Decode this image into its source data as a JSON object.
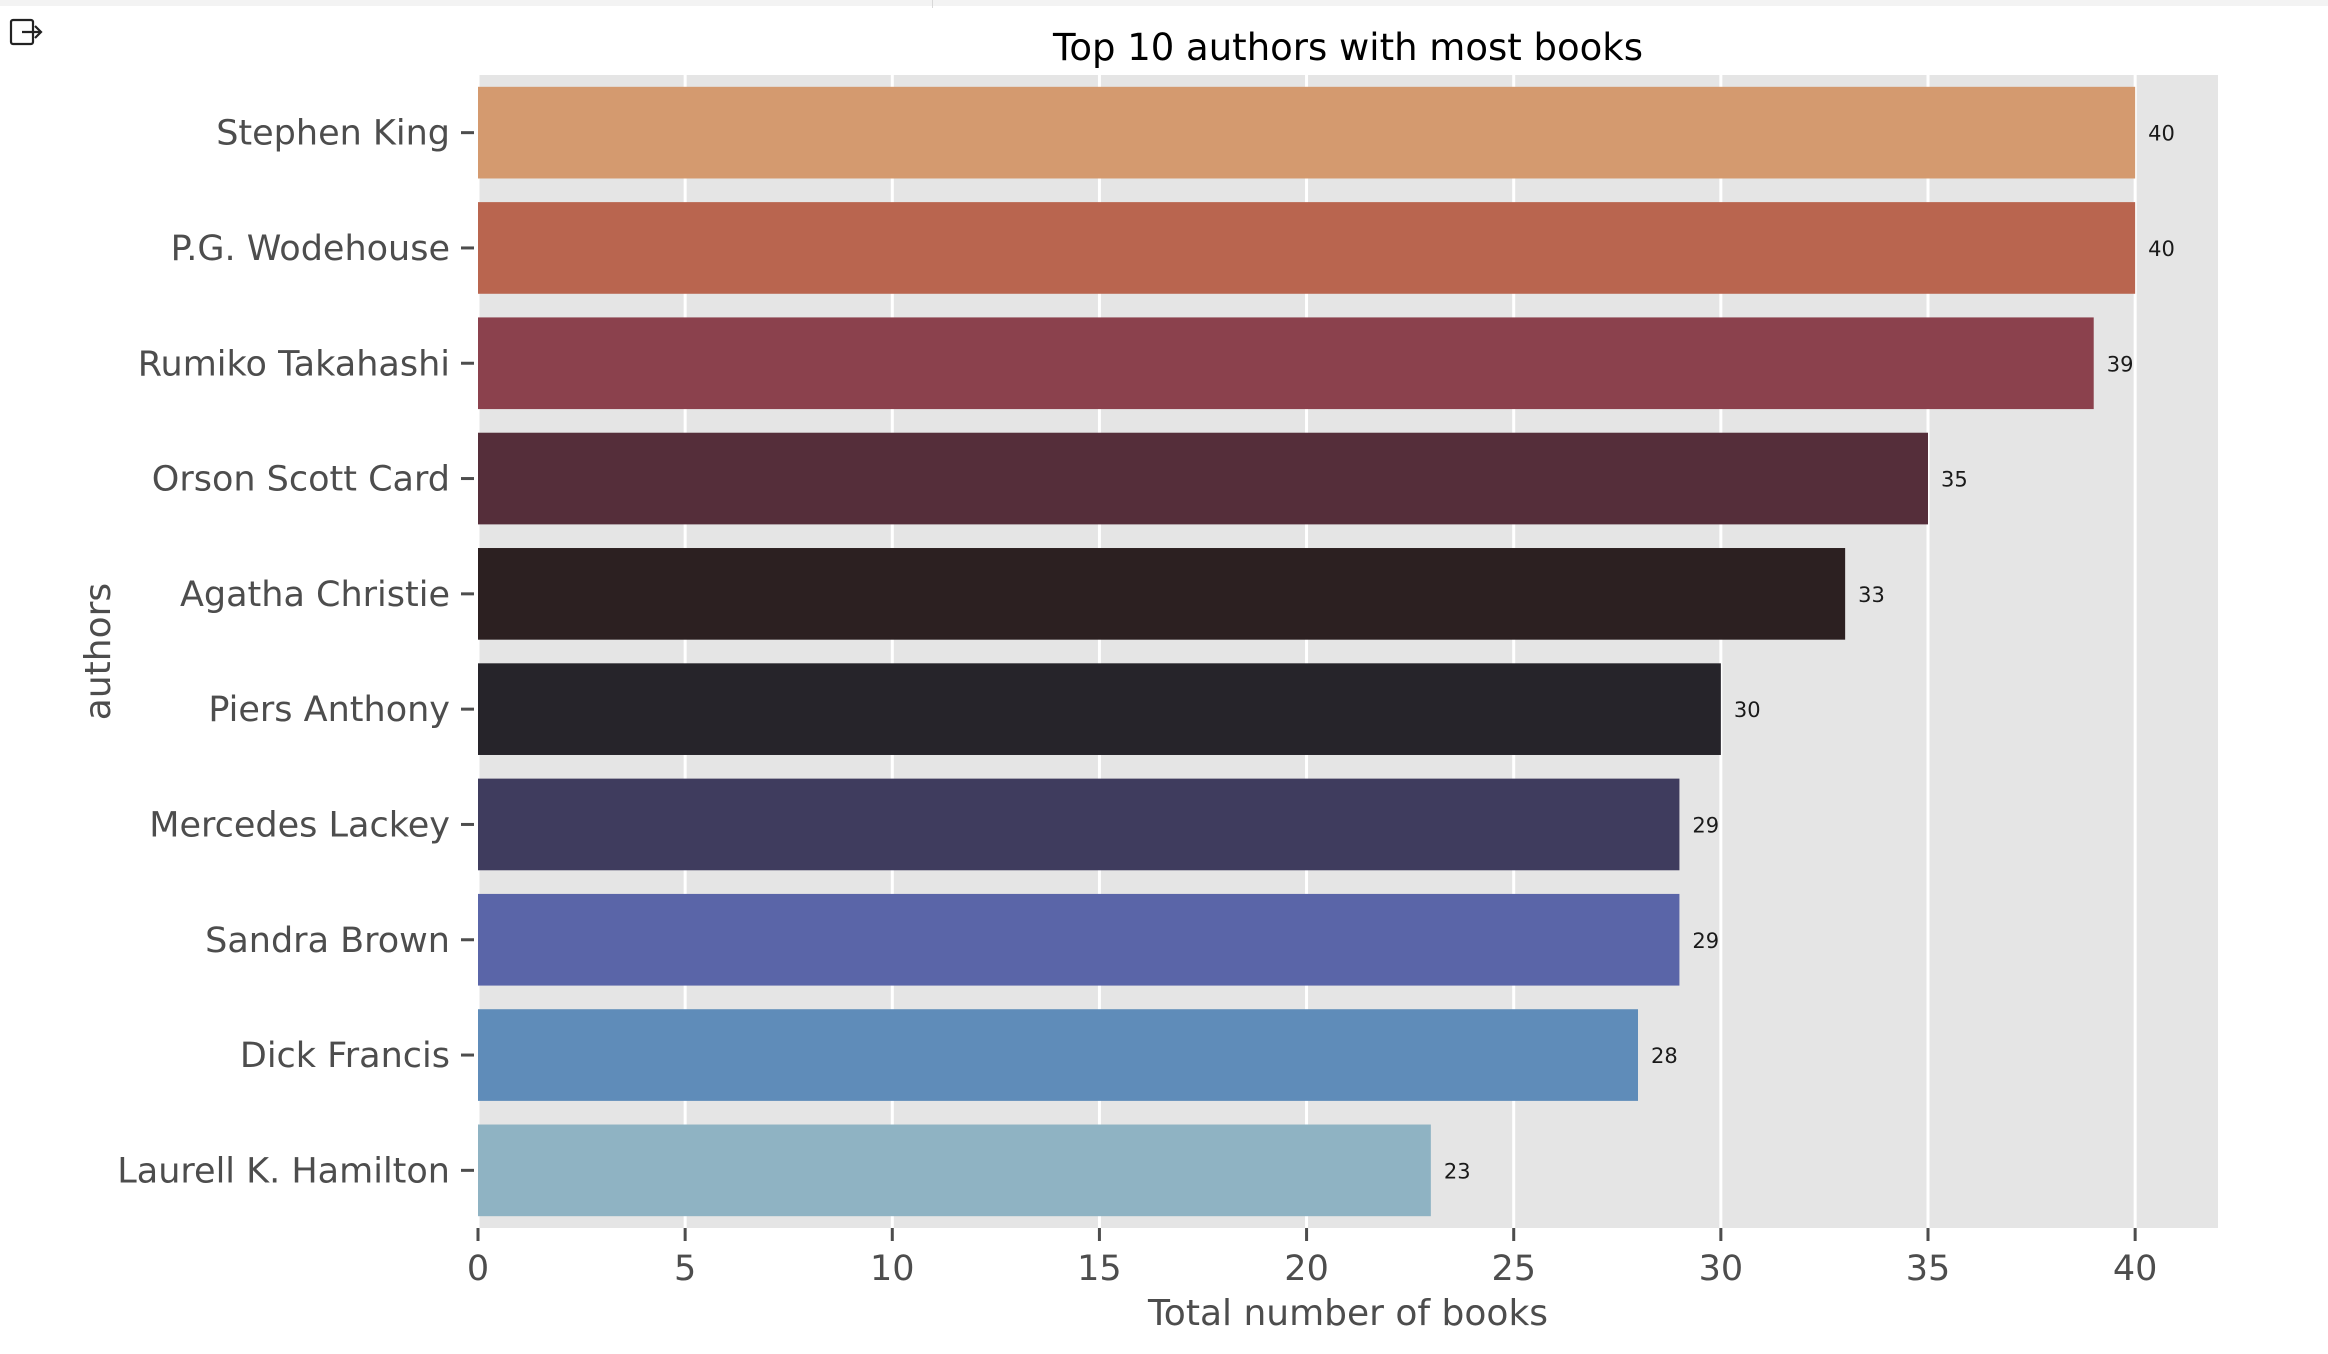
{
  "chart_data": {
    "type": "bar",
    "orientation": "horizontal",
    "title": "Top 10 authors with most books",
    "xlabel": "Total number of books",
    "ylabel": "authors",
    "categories": [
      "Stephen King",
      "P.G. Wodehouse",
      "Rumiko Takahashi",
      "Orson Scott Card",
      "Agatha Christie",
      "Piers Anthony",
      "Mercedes Lackey",
      "Sandra Brown",
      "Dick Francis",
      "Laurell K. Hamilton"
    ],
    "values": [
      40,
      40,
      39,
      35,
      33,
      30,
      29,
      29,
      28,
      23
    ],
    "value_labels": [
      "40",
      "40",
      "39",
      "35",
      "33",
      "30",
      "29",
      "29",
      "28",
      "23"
    ],
    "colors": [
      "#d49a6f",
      "#b9654f",
      "#8b414d",
      "#552e3a",
      "#2c2021",
      "#26242a",
      "#3f3c5e",
      "#5a65a8",
      "#5f8cb9",
      "#8fb3c3"
    ],
    "xticks": [
      0,
      5,
      10,
      15,
      20,
      25,
      30,
      35,
      40
    ],
    "xtick_labels": [
      "0",
      "5",
      "10",
      "15",
      "20",
      "25",
      "30",
      "35",
      "40"
    ],
    "xlim": [
      0,
      42
    ],
    "grid": true,
    "background_color": "#e5e5e5",
    "grid_color": "#ffffff"
  },
  "toolbar": {
    "export_icon": "export-icon"
  }
}
